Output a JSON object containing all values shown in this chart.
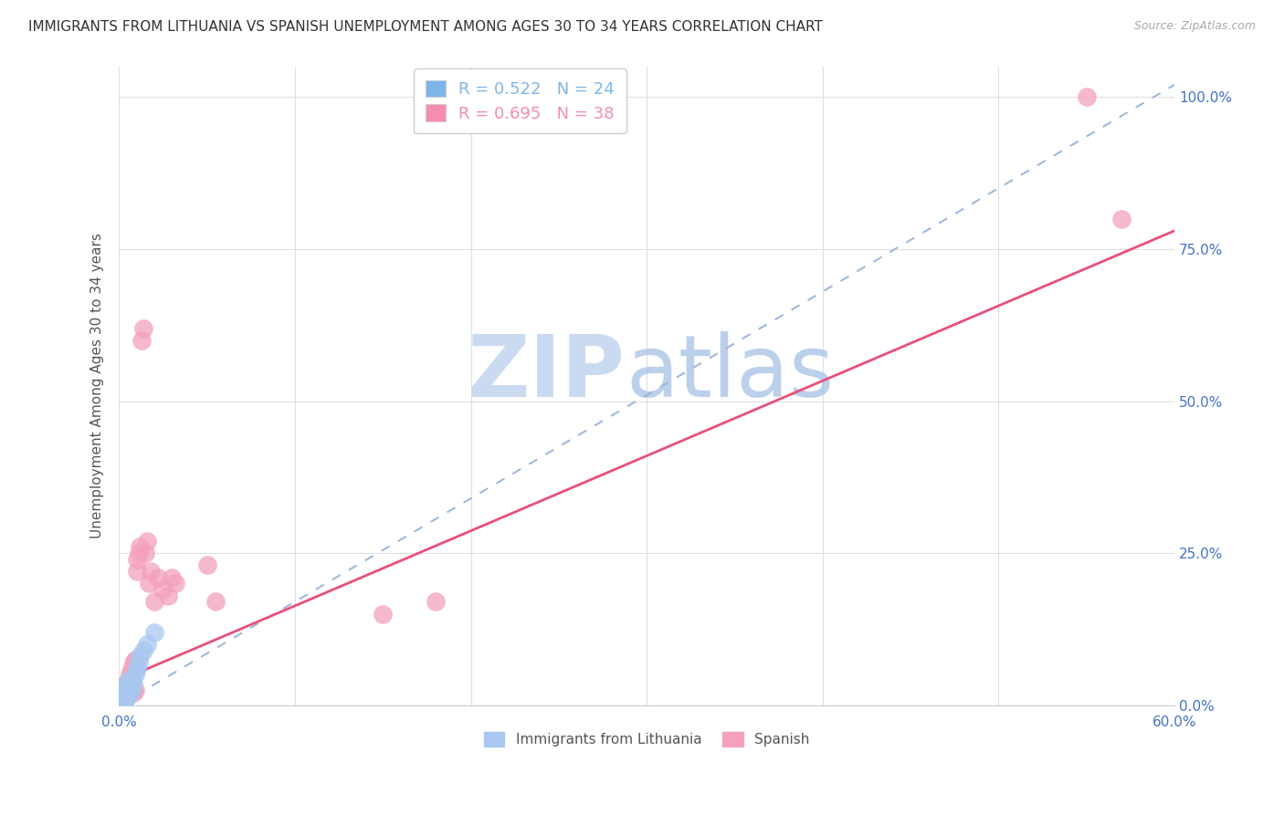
{
  "title": "IMMIGRANTS FROM LITHUANIA VS SPANISH UNEMPLOYMENT AMONG AGES 30 TO 34 YEARS CORRELATION CHART",
  "source": "Source: ZipAtlas.com",
  "ylabel": "Unemployment Among Ages 30 to 34 years",
  "watermark_zip": "ZIP",
  "watermark_atlas": "atlas",
  "xlim": [
    0.0,
    0.6
  ],
  "ylim": [
    0.0,
    1.05
  ],
  "yticks": [
    0.0,
    0.25,
    0.5,
    0.75,
    1.0
  ],
  "ytick_labels": [
    "0.0%",
    "25.0%",
    "50.0%",
    "75.0%",
    "100.0%"
  ],
  "xtick_positions": [
    0.0,
    0.6
  ],
  "xtick_labels": [
    "0.0%",
    "60.0%"
  ],
  "legend1_entries": [
    {
      "label": "R = 0.522   N = 24",
      "color": "#7eb5e8"
    },
    {
      "label": "R = 0.695   N = 38",
      "color": "#f48daf"
    }
  ],
  "legend2_labels": [
    "Immigrants from Lithuania",
    "Spanish"
  ],
  "lithuania_color": "#a8c8f0",
  "lithuanian_line_color": "#a0b8d8",
  "spanish_color": "#f4a0be",
  "spanish_line_color": "#e8507a",
  "lith_x": [
    0.001,
    0.002,
    0.002,
    0.003,
    0.003,
    0.003,
    0.004,
    0.004,
    0.004,
    0.005,
    0.005,
    0.005,
    0.006,
    0.006,
    0.007,
    0.007,
    0.008,
    0.009,
    0.01,
    0.011,
    0.012,
    0.014,
    0.016,
    0.02
  ],
  "lith_y": [
    0.005,
    0.01,
    0.02,
    0.005,
    0.015,
    0.025,
    0.01,
    0.02,
    0.03,
    0.015,
    0.025,
    0.04,
    0.02,
    0.035,
    0.025,
    0.04,
    0.035,
    0.05,
    0.06,
    0.07,
    0.08,
    0.09,
    0.1,
    0.12
  ],
  "span_x": [
    0.001,
    0.002,
    0.003,
    0.003,
    0.004,
    0.004,
    0.005,
    0.005,
    0.006,
    0.006,
    0.007,
    0.007,
    0.008,
    0.008,
    0.009,
    0.009,
    0.01,
    0.01,
    0.011,
    0.012,
    0.013,
    0.014,
    0.015,
    0.016,
    0.017,
    0.018,
    0.02,
    0.022,
    0.025,
    0.028,
    0.03,
    0.032,
    0.05,
    0.055,
    0.15,
    0.18,
    0.55,
    0.57
  ],
  "span_y": [
    0.005,
    0.01,
    0.015,
    0.02,
    0.02,
    0.03,
    0.02,
    0.04,
    0.02,
    0.05,
    0.025,
    0.06,
    0.02,
    0.07,
    0.025,
    0.075,
    0.22,
    0.24,
    0.25,
    0.26,
    0.6,
    0.62,
    0.25,
    0.27,
    0.2,
    0.22,
    0.17,
    0.21,
    0.19,
    0.18,
    0.21,
    0.2,
    0.23,
    0.17,
    0.15,
    0.17,
    1.0,
    0.8
  ],
  "lith_line_x": [
    0.0,
    0.6
  ],
  "lith_line_y": [
    0.0,
    1.02
  ],
  "span_line_x": [
    0.0,
    0.6
  ],
  "span_line_y": [
    0.04,
    0.78
  ],
  "title_fontsize": 11,
  "source_fontsize": 9,
  "ylabel_fontsize": 11,
  "tick_color": "#4472c4",
  "watermark_zip_color": "#c5d8f0",
  "watermark_atlas_color": "#b0c8e8",
  "grid_color": "#e0e0e0",
  "background_color": "#ffffff"
}
